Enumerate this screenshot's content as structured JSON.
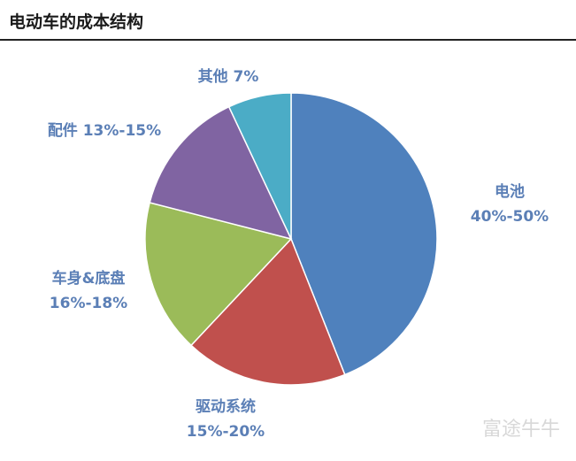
{
  "chart_data": {
    "type": "pie",
    "title": "电动车的成本结构",
    "categories": [
      "电池 40%-50%",
      "驱动系统 15%-20%",
      "车身&底盘 16%-18%",
      "配件 13%-15%",
      "其他 7%"
    ],
    "values": [
      44,
      18,
      17,
      14,
      7
    ],
    "colors": [
      "#4f81bd",
      "#c0504d",
      "#9bbb59",
      "#8064a2",
      "#4bacc6"
    ],
    "watermark": "富途牛牛"
  }
}
